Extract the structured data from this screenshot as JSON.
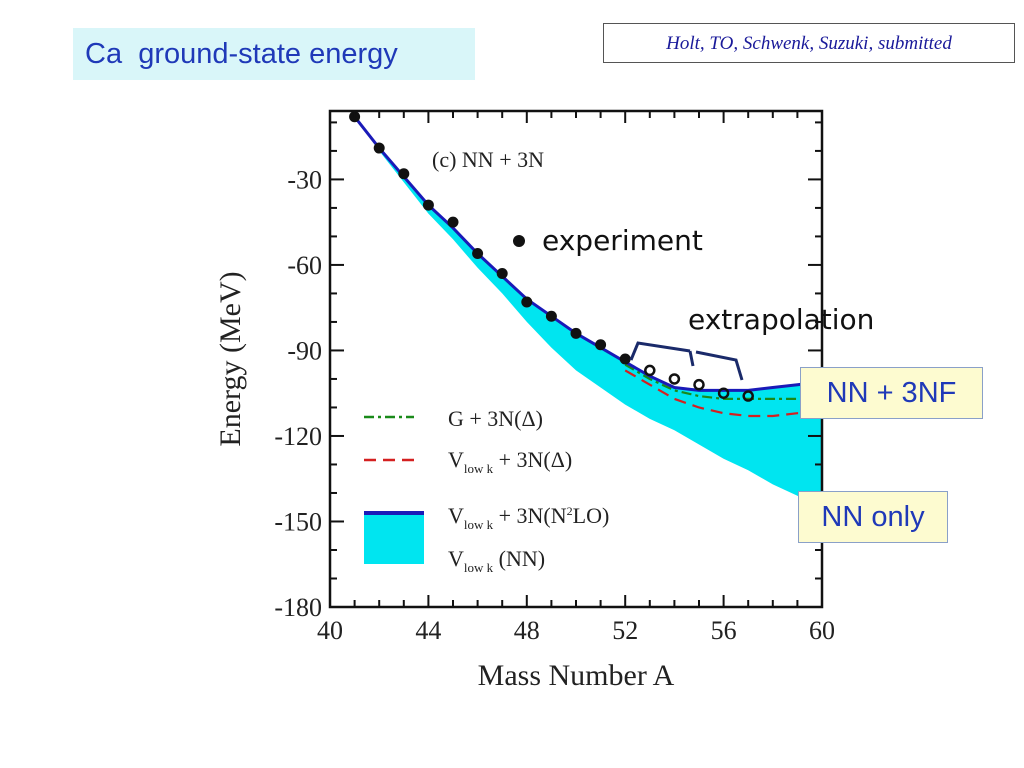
{
  "slide": {
    "title_superscript": "",
    "title_element": "Ca",
    "title_rest": "ground-state energy",
    "reference": "Holt, TO, Schwenk, Suzuki,  submitted"
  },
  "annotations": {
    "experiment": "experiment",
    "extrapolation": "extrapolation",
    "nn_3nf": "NN + 3NF",
    "nn_only": "NN only",
    "panel_label": "(c) NN + 3N"
  },
  "chart_data": {
    "type": "line",
    "xlabel": "Mass Number A",
    "ylabel": "Energy (MeV)",
    "xlim": [
      40,
      60
    ],
    "ylim": [
      -180,
      -6
    ],
    "x_ticks": [
      40,
      44,
      48,
      52,
      56,
      60
    ],
    "y_ticks": [
      -30,
      -60,
      -90,
      -120,
      -150,
      -180
    ],
    "experiment": {
      "name": "experiment",
      "x": [
        41,
        42,
        43,
        44,
        45,
        46,
        47,
        48,
        49,
        50,
        51,
        52
      ],
      "y": [
        -8,
        -19,
        -28,
        -39,
        -45,
        -56,
        -63,
        -73,
        -78,
        -84,
        -88,
        -93
      ]
    },
    "extrapolation_points": {
      "x": [
        53,
        54,
        55,
        56,
        57
      ],
      "y": [
        -97,
        -100,
        -102,
        -105,
        -106
      ]
    },
    "band": {
      "x": [
        41,
        42,
        43,
        44,
        45,
        46,
        47,
        48,
        49,
        50,
        51,
        52,
        53,
        54,
        55,
        56,
        57,
        58,
        59,
        60
      ],
      "upper": [
        -8,
        -19,
        -29,
        -39,
        -47,
        -56,
        -64,
        -72,
        -78,
        -84,
        -89,
        -94,
        -99,
        -103,
        -104,
        -104,
        -104,
        -103,
        -102,
        -101
      ],
      "lower": [
        -8,
        -20,
        -31,
        -42,
        -51,
        -61,
        -70,
        -80,
        -89,
        -97,
        -103,
        -109,
        -114,
        -118,
        -123,
        -128,
        -132,
        -137,
        -141,
        -146
      ]
    },
    "series": [
      {
        "name": "G + 3N(Δ)",
        "x": [
          52,
          53,
          54,
          55,
          56,
          57,
          58,
          59,
          60
        ],
        "y": [
          -95,
          -100,
          -104,
          -106,
          -107,
          -107,
          -107,
          -107,
          -107
        ]
      },
      {
        "name": "V_low k + 3N(Δ)",
        "x": [
          52,
          53,
          54,
          55,
          56,
          57,
          58,
          59,
          60
        ],
        "y": [
          -97,
          -102,
          -107,
          -110,
          -112,
          -113,
          -113,
          -112,
          -112
        ]
      },
      {
        "name": "V_low k + 3N(N²LO)",
        "x": [
          41,
          42,
          43,
          44,
          45,
          46,
          47,
          48,
          49,
          50,
          51,
          52,
          53,
          54,
          55,
          56,
          57,
          58,
          59,
          60
        ],
        "y": [
          -8,
          -19,
          -29,
          -39,
          -47,
          -56,
          -64,
          -72,
          -78,
          -84,
          -89,
          -94,
          -99,
          -103,
          -104,
          -104,
          -104,
          -103,
          -102,
          -101
        ]
      },
      {
        "name": "V_low k (NN)",
        "x": [
          41,
          60
        ],
        "y": [
          -8,
          -146
        ]
      }
    ],
    "legend_placement": "lower-left",
    "colors": {
      "band": "#00e5f0",
      "upper_line": "#1a1ab8",
      "g3n": "#1a8a1a",
      "vlowk3n": "#d42020",
      "points": "#111111"
    }
  }
}
